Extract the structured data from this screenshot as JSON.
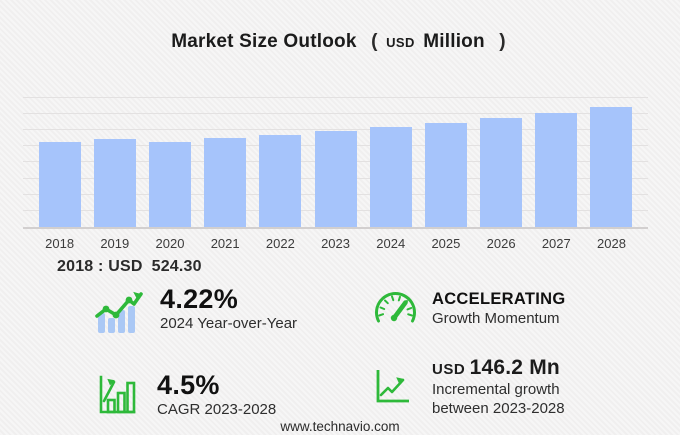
{
  "title": {
    "main": "Market Size Outlook",
    "open_paren": "(",
    "currency": "USD",
    "unit": "Million",
    "close_paren": ")"
  },
  "chart_data": {
    "type": "bar",
    "title": "Market Size Outlook (USD Million)",
    "categories": [
      "2018",
      "2019",
      "2020",
      "2021",
      "2022",
      "2023",
      "2024",
      "2025",
      "2026",
      "2027",
      "2028"
    ],
    "values": [
      524.3,
      545.6,
      528.3,
      547.9,
      570.0,
      593.9,
      619.0,
      645.5,
      674.2,
      706.0,
      740.1
    ],
    "xlabel": "",
    "ylabel": "",
    "ylim": [
      0,
      800
    ],
    "gridline_step": 100,
    "grid": true,
    "legend": false,
    "bar_color": "#a6c4fb"
  },
  "note": {
    "label": "2018 : USD",
    "value": "524.30"
  },
  "stats": [
    {
      "icon": "bar-line-growth-icon",
      "value": "4.22%",
      "label": "2024 Year-over-Year"
    },
    {
      "icon": "gauge-icon",
      "value": "ACCELERATING",
      "label": "Growth Momentum"
    },
    {
      "icon": "framed-bar-chart-icon",
      "value": "4.5%",
      "label": "CAGR 2023-2028"
    },
    {
      "icon": "axis-line-growth-icon",
      "currency": "USD",
      "value": "146.2 Mn",
      "label_line1": "Incremental growth",
      "label_line2": "between 2023-2028"
    }
  ],
  "footer": {
    "url": "www.technavio.com"
  },
  "colors": {
    "background": "#f2f1f1",
    "bar": "#a6c4fb",
    "gridline": "#e3e1e1",
    "accent_green": "#2eb93a",
    "icon_bar_blue": "#aac8f5",
    "text_dark": "#1b1b1b"
  }
}
